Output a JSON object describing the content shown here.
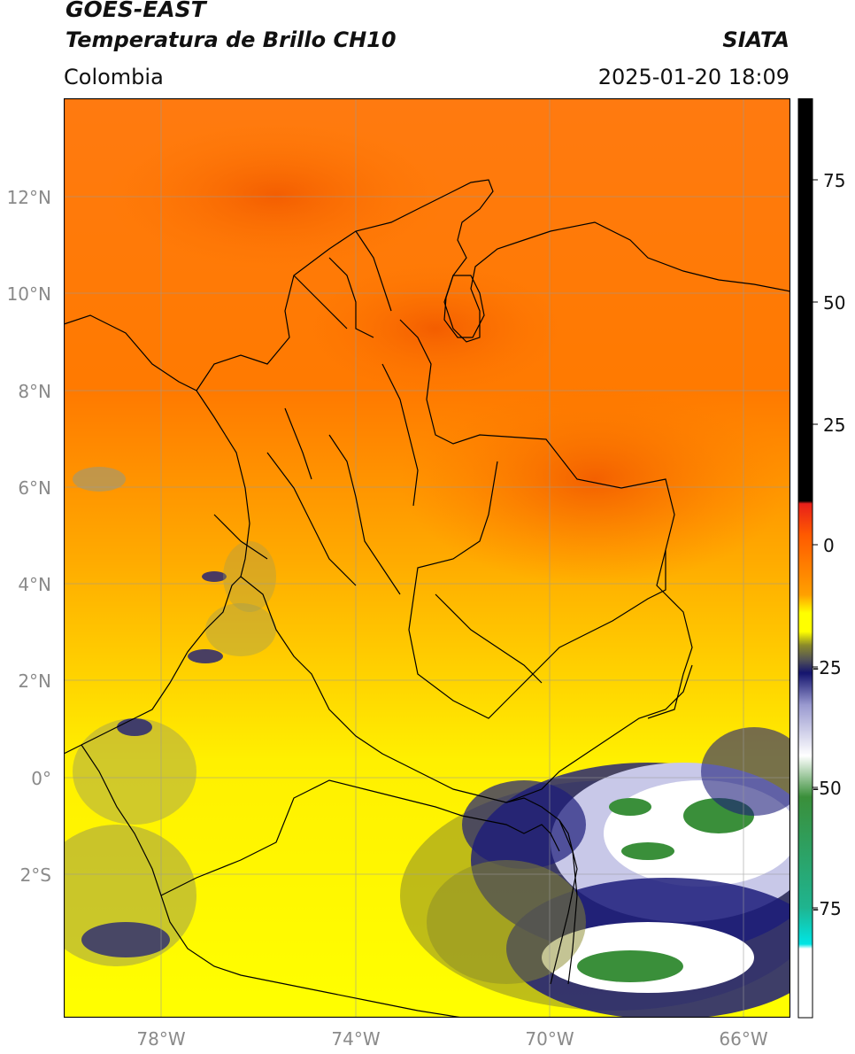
{
  "header": {
    "title_line1": "GOES-EAST",
    "title_line2": "Temperatura de Brillo CH10",
    "region": "Colombia",
    "source": "SIATA",
    "datetime": "2025-01-20 18:09"
  },
  "map": {
    "lat_labels": [
      "12°N",
      "10°N",
      "8°N",
      "6°N",
      "4°N",
      "2°N",
      "0°",
      "2°S"
    ],
    "lon_labels": [
      "78°W",
      "74°W",
      "70°W",
      "66°W"
    ],
    "lat_range": [
      -4.9,
      14.0
    ],
    "lon_range": [
      -80.0,
      -65.0
    ]
  },
  "colorbar": {
    "ticks": [
      "75",
      "50",
      "25",
      "0",
      "-25",
      "-50",
      "-75"
    ],
    "tick_values": [
      75,
      50,
      25,
      0,
      -25,
      -50,
      -75
    ],
    "range": [
      -97,
      90
    ],
    "colors": {
      "black": "#000000",
      "red": "#e8201a",
      "orange": "#ff7400",
      "yellow": "#ffff00",
      "olive": "#8a8a2a",
      "navy": "#14146e",
      "white": "#ffffff",
      "green": "#3a8f3a",
      "teal": "#1fb48f",
      "cyan": "#00e5e5"
    }
  }
}
